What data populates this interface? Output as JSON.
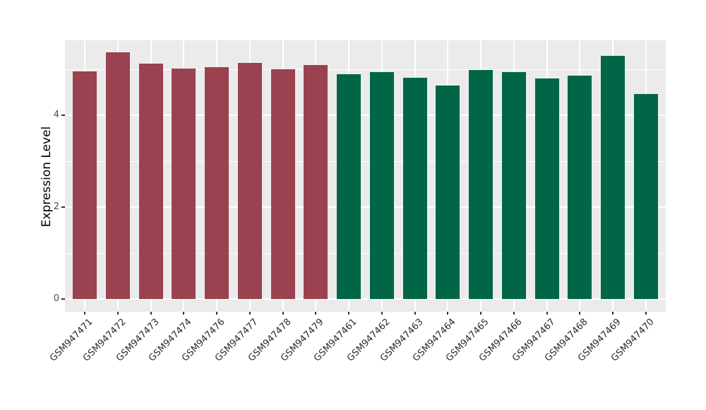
{
  "chart_data": {
    "type": "bar",
    "title": "",
    "xlabel": "",
    "ylabel": "Expression Level",
    "ylim": [
      0,
      5.63
    ],
    "yticks": [
      "0",
      "2",
      "4"
    ],
    "ytick_values": [
      0,
      2,
      4
    ],
    "yminor_values": [
      1,
      3,
      5
    ],
    "grid": "on",
    "legend_position": "none",
    "categories": [
      "GSM947471",
      "GSM947472",
      "GSM947473",
      "GSM947474",
      "GSM947476",
      "GSM947477",
      "GSM947478",
      "GSM947479",
      "GSM947461",
      "GSM947462",
      "GSM947463",
      "GSM947464",
      "GSM947465",
      "GSM947466",
      "GSM947467",
      "GSM947468",
      "GSM947469",
      "GSM947470"
    ],
    "values": [
      4.95,
      5.37,
      5.13,
      5.02,
      5.05,
      5.14,
      5.0,
      5.1,
      4.9,
      4.94,
      4.82,
      4.65,
      4.98,
      4.94,
      4.8,
      4.86,
      5.29,
      4.46
    ],
    "bar_groups": [
      0,
      0,
      0,
      0,
      0,
      0,
      0,
      0,
      1,
      1,
      1,
      1,
      1,
      1,
      1,
      1,
      1,
      1
    ],
    "group_colors": [
      "#9A4250",
      "#006647"
    ],
    "colors": {
      "panel_background": "#EBEBEB",
      "gridline": "#FFFFFF",
      "axis_text": "#4D4D4D",
      "x_axis_text": "#2B2B2B",
      "axis_title": "#000000",
      "tick_mark": "#333333"
    }
  }
}
